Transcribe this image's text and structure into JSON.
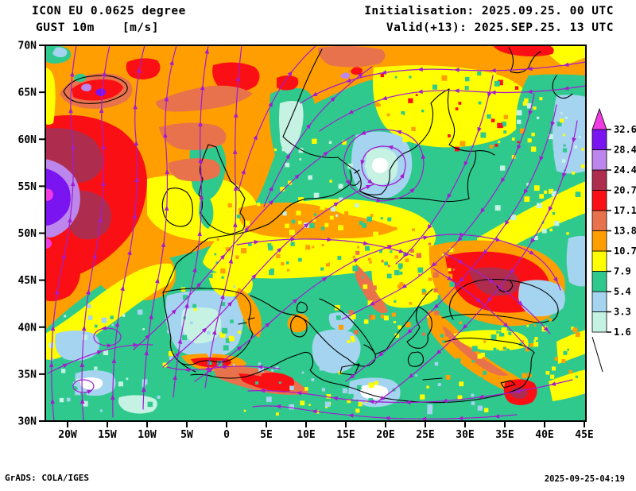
{
  "header": {
    "model_line": "ICON EU 0.0625 degree",
    "field_name": "GUST 10m",
    "units": "[m/s]",
    "init_line": "Initialisation: 2025.09.25. 00 UTC",
    "valid_line": "Valid(+13): 2025.SEP.25. 13 UTC"
  },
  "axes": {
    "lat_labels": [
      "70N",
      "65N",
      "60N",
      "55N",
      "50N",
      "45N",
      "40N",
      "35N",
      "30N"
    ],
    "lon_labels": [
      "20W",
      "15W",
      "10W",
      "5W",
      "0",
      "5E",
      "10E",
      "15E",
      "20E",
      "25E",
      "30E",
      "35E",
      "40E",
      "45E"
    ]
  },
  "legend": {
    "tick_labels_top_down": [
      "32.6",
      "28.4",
      "24.4",
      "20.7",
      "17.1",
      "13.8",
      "10.7",
      "7.9",
      "5.4",
      "3.3",
      "1.6"
    ],
    "segment_colors_bottom_up": [
      "#c5f2e3",
      "#a5d4f0",
      "#2fc98e",
      "#ffff00",
      "#ff9e00",
      "#e8724b",
      "#fa1014",
      "#ae2d4e",
      "#bd86ec",
      "#7a14f0"
    ],
    "over_arrow_color": "#ee3ce2"
  },
  "footer": {
    "credit": "GrADS: COLA/IGES",
    "generated": "2025-09-25-04:19"
  },
  "palette": {
    "streamline": "#a21cd0",
    "coastline": "#000000",
    "base_field": "#2fc98e"
  }
}
